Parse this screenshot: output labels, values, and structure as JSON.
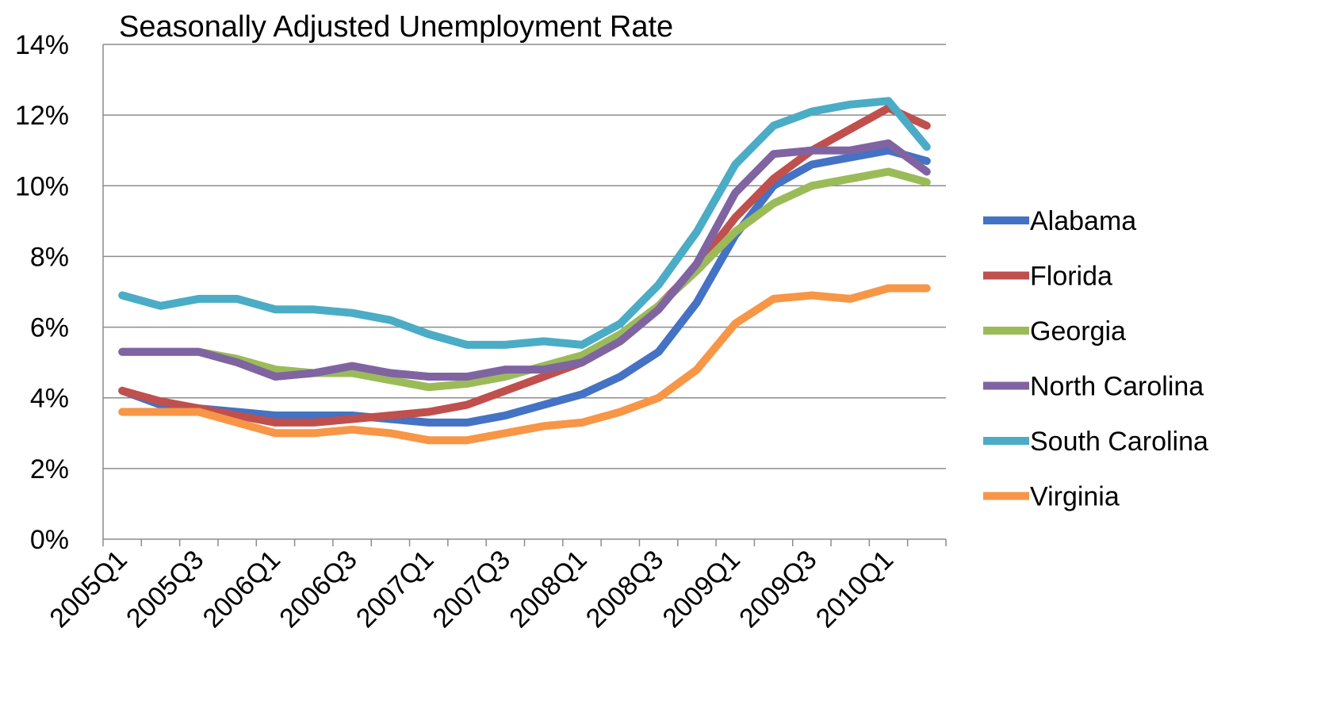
{
  "chart_data": {
    "type": "line",
    "title": "Seasonally Adjusted Unemployment Rate",
    "xlabel": "",
    "ylabel": "",
    "ylim": [
      0,
      14
    ],
    "y_ticks": [
      "0%",
      "2%",
      "4%",
      "6%",
      "8%",
      "10%",
      "12%",
      "14%"
    ],
    "y_tick_values": [
      0,
      2,
      4,
      6,
      8,
      10,
      12,
      14
    ],
    "categories": [
      "2005Q1",
      "2005Q2",
      "2005Q3",
      "2005Q4",
      "2006Q1",
      "2006Q2",
      "2006Q3",
      "2006Q4",
      "2007Q1",
      "2007Q2",
      "2007Q3",
      "2007Q4",
      "2008Q1",
      "2008Q2",
      "2008Q3",
      "2008Q4",
      "2009Q1",
      "2009Q2",
      "2009Q3",
      "2009Q4",
      "2010Q1",
      "2010Q2"
    ],
    "x_tick_labels": [
      "2005Q1",
      "",
      "2005Q3",
      "",
      "2006Q1",
      "",
      "2006Q3",
      "",
      "2007Q1",
      "",
      "2007Q3",
      "",
      "2008Q1",
      "",
      "2008Q3",
      "",
      "2009Q1",
      "",
      "2009Q3",
      "",
      "2010Q1",
      ""
    ],
    "grid": true,
    "legend_position": "right",
    "series": [
      {
        "name": "Alabama",
        "color": "#4472C4",
        "values": [
          4.2,
          3.8,
          3.7,
          3.6,
          3.5,
          3.5,
          3.5,
          3.4,
          3.3,
          3.3,
          3.5,
          3.8,
          4.1,
          4.6,
          5.3,
          6.7,
          8.6,
          10.0,
          10.6,
          10.8,
          11.0,
          10.7
        ]
      },
      {
        "name": "Florida",
        "color": "#C0504D",
        "values": [
          4.2,
          3.9,
          3.7,
          3.5,
          3.3,
          3.3,
          3.4,
          3.5,
          3.6,
          3.8,
          4.2,
          4.6,
          5.0,
          5.7,
          6.6,
          7.7,
          9.1,
          10.2,
          11.0,
          11.6,
          12.2,
          11.7
        ]
      },
      {
        "name": "Georgia",
        "color": "#9BBB59",
        "values": [
          5.3,
          5.3,
          5.3,
          5.1,
          4.8,
          4.7,
          4.7,
          4.5,
          4.3,
          4.4,
          4.6,
          4.9,
          5.2,
          5.8,
          6.6,
          7.6,
          8.7,
          9.5,
          10.0,
          10.2,
          10.4,
          10.1
        ]
      },
      {
        "name": "North Carolina",
        "color": "#8064A2",
        "values": [
          5.3,
          5.3,
          5.3,
          5.0,
          4.6,
          4.7,
          4.9,
          4.7,
          4.6,
          4.6,
          4.8,
          4.8,
          5.0,
          5.6,
          6.5,
          7.8,
          9.8,
          10.9,
          11.0,
          11.0,
          11.2,
          10.4
        ]
      },
      {
        "name": "South Carolina",
        "color": "#4BACC6",
        "values": [
          6.9,
          6.6,
          6.8,
          6.8,
          6.5,
          6.5,
          6.4,
          6.2,
          5.8,
          5.5,
          5.5,
          5.6,
          5.5,
          6.1,
          7.2,
          8.7,
          10.6,
          11.7,
          12.1,
          12.3,
          12.4,
          11.1
        ]
      },
      {
        "name": "Virginia",
        "color": "#F79646",
        "values": [
          3.6,
          3.6,
          3.6,
          3.3,
          3.0,
          3.0,
          3.1,
          3.0,
          2.8,
          2.8,
          3.0,
          3.2,
          3.3,
          3.6,
          4.0,
          4.8,
          6.1,
          6.8,
          6.9,
          6.8,
          7.1,
          7.1
        ]
      }
    ]
  }
}
